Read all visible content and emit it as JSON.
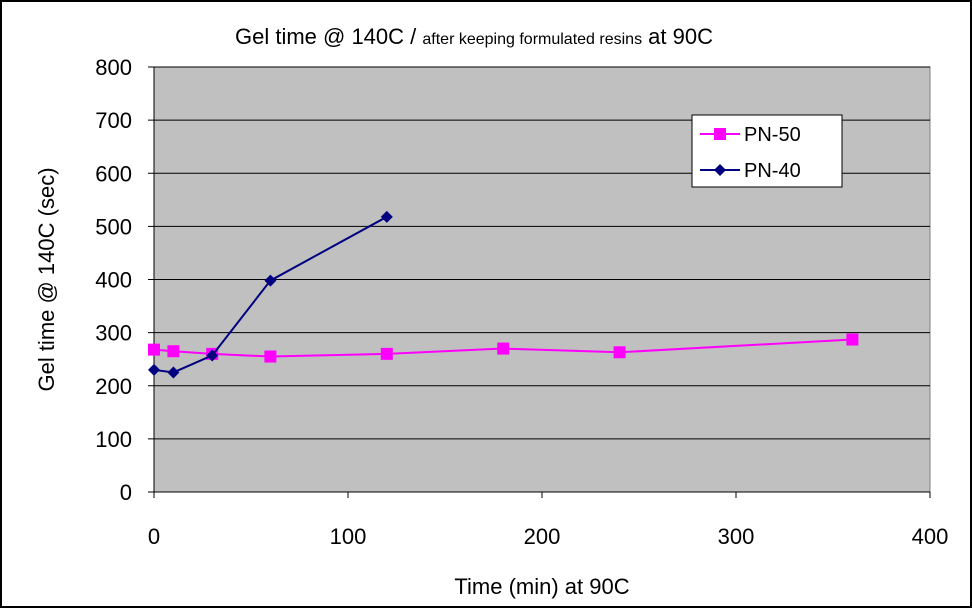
{
  "chart_data": {
    "type": "line",
    "title": "Gel time @ 140C / after keeping formulated resins at 90C",
    "title_main": "Gel time @ 140C / ",
    "title_small": "after keeping formulated resins",
    "title_end": " at 90C",
    "xlabel": "Time (min) at 90C",
    "ylabel": "Gel time @ 140C (sec)",
    "xlim": [
      0,
      400
    ],
    "ylim": [
      0,
      800
    ],
    "x_ticks": [
      0,
      100,
      200,
      300,
      400
    ],
    "y_ticks": [
      0,
      100,
      200,
      300,
      400,
      500,
      600,
      700,
      800
    ],
    "grid": "horizontal",
    "plot_background": "#c0c0c0",
    "legend_position": "top-right",
    "series": [
      {
        "name": "PN-50",
        "color": "#ff00ff",
        "marker": "square",
        "points": [
          [
            0,
            268
          ],
          [
            10,
            265
          ],
          [
            30,
            260
          ],
          [
            60,
            255
          ],
          [
            120,
            260
          ],
          [
            180,
            270
          ],
          [
            240,
            263
          ],
          [
            360,
            287
          ]
        ]
      },
      {
        "name": "PN-40",
        "color": "#000080",
        "marker": "diamond",
        "points": [
          [
            0,
            230
          ],
          [
            10,
            225
          ],
          [
            30,
            257
          ],
          [
            60,
            398
          ],
          [
            120,
            518
          ]
        ]
      }
    ]
  }
}
